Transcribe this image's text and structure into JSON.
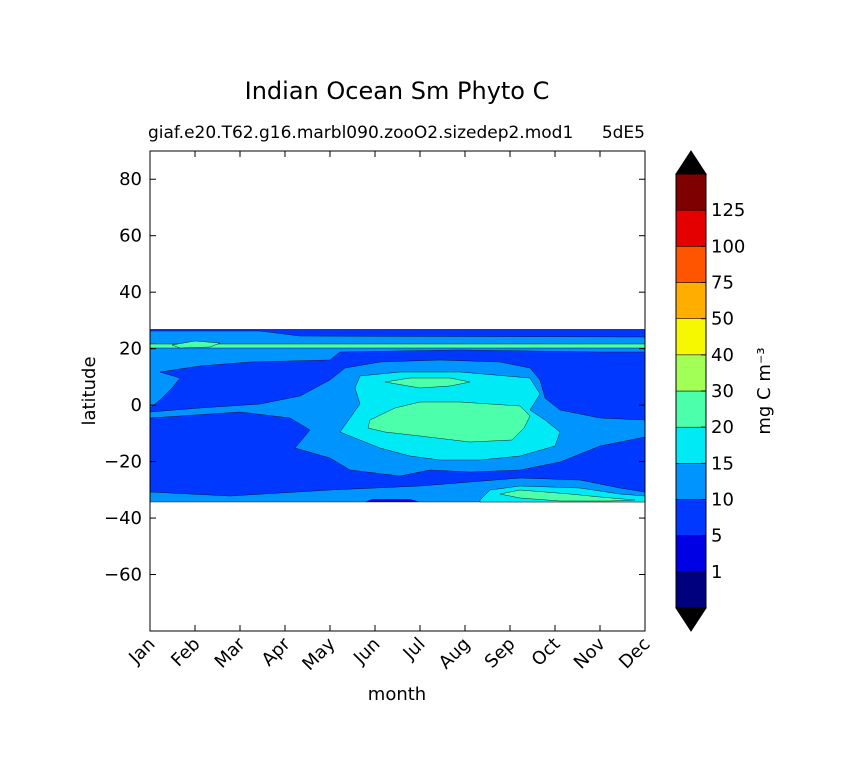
{
  "chart_data": {
    "type": "heatmap",
    "plot_kind": "filled contour (contourf)",
    "title": "Indian Ocean Sm Phyto C",
    "subtitle_left": "giaf.e20.T62.g16.marbl090.zooO2.sizedep2.mod1",
    "subtitle_right": "5dE5",
    "xlabel": "month",
    "ylabel": "latitude",
    "x_ticks": [
      "Jan",
      "Feb",
      "Mar",
      "Apr",
      "May",
      "Jun",
      "Jul",
      "Aug",
      "Sep",
      "Oct",
      "Nov",
      "Dec"
    ],
    "y_ticks": [
      80,
      60,
      40,
      20,
      0,
      -20,
      -40,
      -60
    ],
    "y_tick_labels": [
      "80",
      "60",
      "40",
      "20",
      "0",
      "−20",
      "−40",
      "−60"
    ],
    "ylim": [
      -80,
      90
    ],
    "data_lat_range": [
      -34,
      27
    ],
    "colorbar": {
      "label": "mg C m⁻³",
      "levels": [
        1,
        5,
        10,
        15,
        20,
        30,
        40,
        50,
        75,
        100,
        125
      ],
      "level_labels": [
        "1",
        "5",
        "10",
        "15",
        "20",
        "30",
        "40",
        "50",
        "75",
        "100",
        "125"
      ],
      "band_colors": [
        "#00007f",
        "#0000e5",
        "#0038ff",
        "#0094ff",
        "#00eaf6",
        "#4cffaa",
        "#a2ff55",
        "#f6f800",
        "#ffae00",
        "#ff5500",
        "#e50000",
        "#7f0000"
      ],
      "extend": "both",
      "under_color": "#000000",
      "over_color": "#000000"
    },
    "regions": [
      {
        "level": "5-10",
        "description": "background over most months and latitudes -34 to 27"
      },
      {
        "level": "10-15",
        "description": "band near 0-20N early months and a broad patch May-Nov around -25 to 12"
      },
      {
        "level": "15-20",
        "description": "Jun-Oct centered near -5 latitude"
      },
      {
        "level": "20-30",
        "description": "core Jul-Oct around -12 to 2, small patch near 8N in Jul-Aug, and patch near -32 in Sep-Dec"
      },
      {
        "level": "20-30",
        "description": "thin line near 21N across all months"
      }
    ],
    "grid": false,
    "legend": "colorbar-right"
  }
}
